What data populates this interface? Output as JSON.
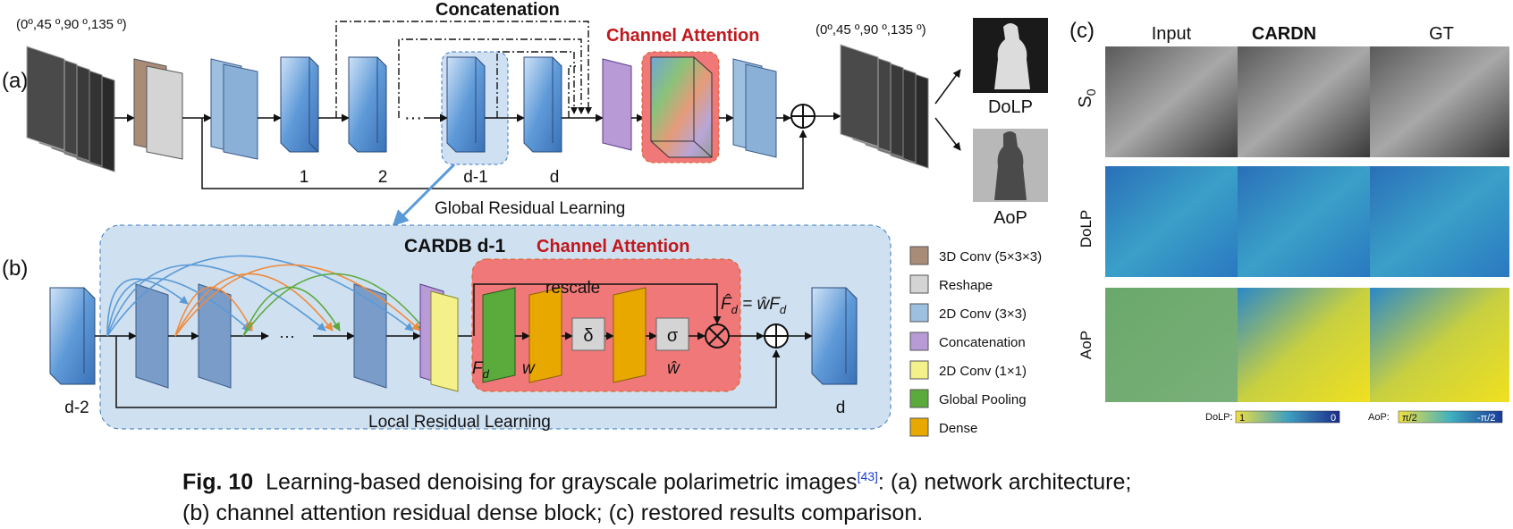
{
  "panel_a": {
    "tag": "(a)",
    "concat_label": "Concatenation",
    "ca_label": "Channel Attention",
    "angles_in": "(0º,45 º,90 º,135 º)",
    "angles_out": "(0º,45 º,90 º,135 º)",
    "block_labels": [
      "1",
      "2",
      "d-1",
      "d"
    ],
    "ellipsis": "···",
    "global_residual": "Global Residual Learning",
    "out_dolp": "DoLP",
    "out_aop": "AoP"
  },
  "panel_b": {
    "tag": "(b)",
    "title": "CARDB d-1",
    "ca_label": "Channel Attention",
    "rescale": "rescale",
    "in_label": "d-2",
    "out_label": "d",
    "local_residual": "Local Residual Learning",
    "ellipsis": "···",
    "delta": "δ",
    "sigma": "σ",
    "fd": "F",
    "fd_sub": "d",
    "w": "w",
    "w_hat": "ŵ",
    "formula_lhs": "F̂",
    "formula_sub": "d",
    "formula_rhs": " = ŵF",
    "formula_rhs_sub": "d"
  },
  "legend": [
    {
      "label": "3D Conv (5×3×3)",
      "color": "#a88c78"
    },
    {
      "label": "Reshape",
      "color": "#d4d4d4"
    },
    {
      "label": "2D Conv (3×3)",
      "color": "#9dbfe0"
    },
    {
      "label": "Concatenation",
      "color": "#b89ad6"
    },
    {
      "label": "2D Conv (1×1)",
      "color": "#f4f08a"
    },
    {
      "label": "Global Pooling",
      "color": "#5aaa3c"
    },
    {
      "label": "Dense",
      "color": "#e8a800"
    }
  ],
  "panel_c": {
    "tag": "(c)",
    "columns": [
      "Input",
      "CARDN",
      "GT"
    ],
    "rows": [
      "S0",
      "DoLP",
      "AoP"
    ],
    "row_s0_main": "S",
    "row_s0_sub": "0",
    "dolp_scale": {
      "name": "DoLP:",
      "max": "1",
      "min": "0"
    },
    "aop_scale": {
      "name": "AoP:",
      "max": "π/2",
      "min": "-π/2"
    }
  },
  "caption": {
    "fig": "Fig. 10",
    "text": "Learning-based denoising for grayscale polarimetric images",
    "ref": "[43]",
    "text2": ": (a) network architecture;",
    "line2": "(b) channel attention residual dense block; (c) restored results comparison."
  }
}
